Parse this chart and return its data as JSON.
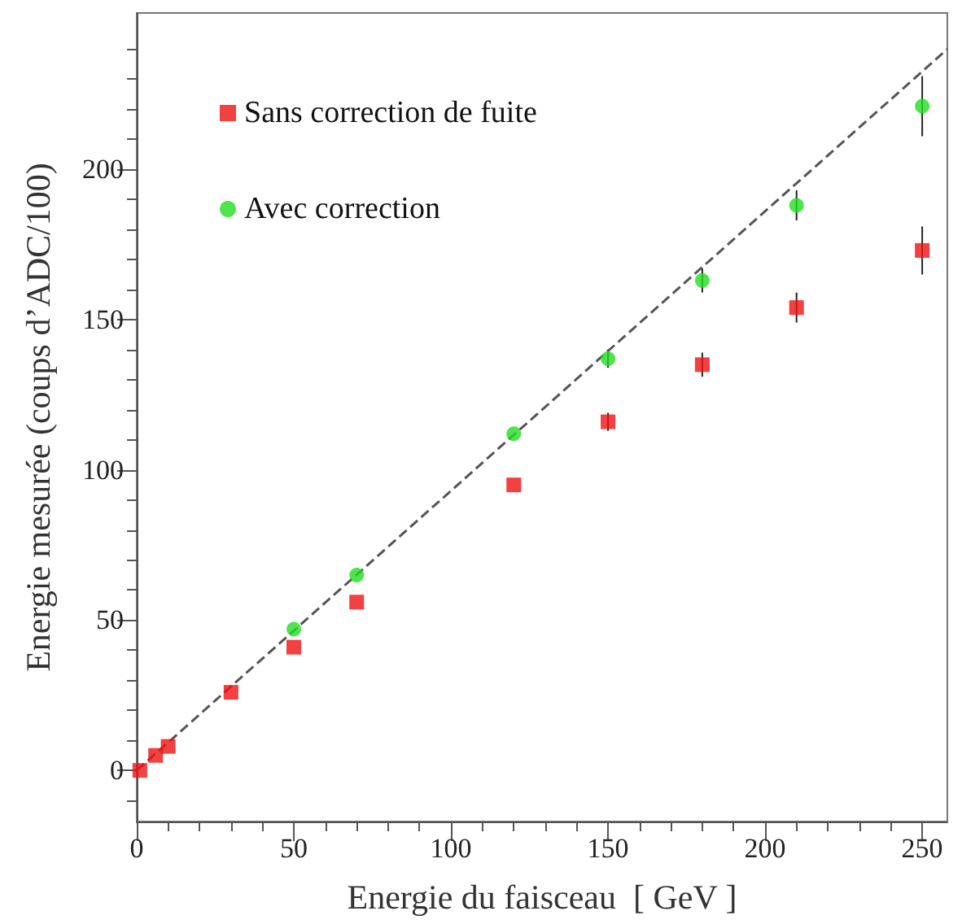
{
  "chart_data": {
    "type": "scatter",
    "xlabel": "Energie du faisceau  [ GeV ]",
    "ylabel": "Energie mesurée (coups d’ADC/100)",
    "xlim": [
      0,
      258
    ],
    "ylim": [
      -17,
      252
    ],
    "xticks": [
      0,
      50,
      100,
      150,
      200,
      250
    ],
    "yticks": [
      0,
      50,
      100,
      150,
      200
    ],
    "grid": false,
    "legend": "top left",
    "series": [
      {
        "name": "Sans correction de fuite",
        "color": "#ee1111",
        "marker": "square",
        "x": [
          1,
          6,
          10,
          30,
          50,
          70,
          120,
          150,
          180,
          210,
          250
        ],
        "values": [
          0,
          5,
          8,
          26,
          41,
          56,
          95,
          116,
          135,
          154,
          173
        ],
        "errors": [
          null,
          null,
          null,
          null,
          null,
          null,
          null,
          3,
          4,
          5,
          8
        ]
      },
      {
        "name": "Avec correction",
        "color": "#22dd22",
        "marker": "circle",
        "x": [
          50,
          70,
          120,
          150,
          180,
          210,
          250
        ],
        "values": [
          47,
          65,
          112,
          137,
          163,
          188,
          221
        ],
        "errors": [
          null,
          null,
          null,
          3,
          4,
          5,
          10
        ]
      },
      {
        "type": "line",
        "color": "#555555",
        "line_style": "dashed",
        "marker": "none",
        "x": [
          0,
          258
        ],
        "values": [
          0,
          240
        ]
      }
    ]
  }
}
